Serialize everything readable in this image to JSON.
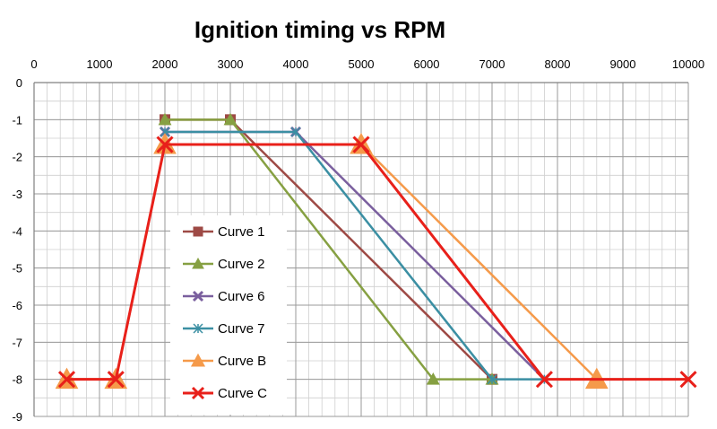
{
  "chart_data": {
    "type": "line",
    "title": "Ignition timing vs RPM",
    "xlabel": "",
    "ylabel": "",
    "xlim": [
      0,
      10000
    ],
    "ylim": [
      -9,
      0
    ],
    "x_ticks": [
      0,
      1000,
      2000,
      3000,
      4000,
      5000,
      6000,
      7000,
      8000,
      9000,
      10000
    ],
    "y_ticks": [
      0,
      -1,
      -2,
      -3,
      -4,
      -5,
      -6,
      -7,
      -8,
      -9
    ],
    "x_axis_position": "top",
    "grid": true,
    "legend_position": "center-left",
    "series": [
      {
        "name": "Curve 1",
        "color": "#9E4A45",
        "marker": "square",
        "points": [
          [
            2000,
            -1
          ],
          [
            3000,
            -1
          ],
          [
            7000,
            -8
          ]
        ]
      },
      {
        "name": "Curve 2",
        "color": "#86A042",
        "marker": "triangle",
        "points": [
          [
            2000,
            -1
          ],
          [
            3000,
            -1
          ],
          [
            6100,
            -8
          ],
          [
            7000,
            -8
          ]
        ]
      },
      {
        "name": "Curve 6",
        "color": "#7A5F9E",
        "marker": "x",
        "points": [
          [
            2000,
            -1.33
          ],
          [
            4000,
            -1.33
          ],
          [
            7800,
            -8
          ]
        ]
      },
      {
        "name": "Curve 7",
        "color": "#3B8FA3",
        "marker": "star",
        "points": [
          [
            2000,
            -1.33
          ],
          [
            4000,
            -1.33
          ],
          [
            7000,
            -8
          ],
          [
            7800,
            -8
          ]
        ]
      },
      {
        "name": "Curve B",
        "color": "#F59A4A",
        "marker": "triangle",
        "points": [
          [
            500,
            -8
          ],
          [
            1250,
            -8
          ],
          [
            2000,
            -1.67
          ],
          [
            5000,
            -1.67
          ],
          [
            8600,
            -8
          ]
        ]
      },
      {
        "name": "Curve C",
        "color": "#E8201A",
        "marker": "x",
        "points": [
          [
            500,
            -8
          ],
          [
            1250,
            -8
          ],
          [
            2000,
            -1.67
          ],
          [
            5000,
            -1.67
          ],
          [
            7800,
            -8
          ],
          [
            10000,
            -8
          ]
        ]
      }
    ]
  }
}
